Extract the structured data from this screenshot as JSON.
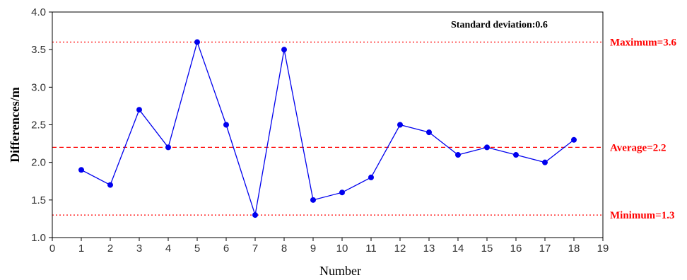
{
  "chart_data": {
    "type": "line",
    "title": "",
    "xlabel": "Number",
    "ylabel": "Differences/m",
    "xlim": [
      0,
      19
    ],
    "ylim": [
      1.0,
      4.0
    ],
    "x_ticks": [
      "0",
      "1",
      "2",
      "3",
      "4",
      "5",
      "6",
      "7",
      "8",
      "9",
      "10",
      "11",
      "12",
      "13",
      "14",
      "15",
      "16",
      "17",
      "18",
      "19"
    ],
    "y_ticks": [
      "1.0",
      "1.5",
      "2.0",
      "2.5",
      "3.0",
      "3.5",
      "4.0"
    ],
    "series": [
      {
        "color": "#0000ee",
        "x": [
          1,
          2,
          3,
          4,
          5,
          6,
          7,
          8,
          9,
          10,
          11,
          12,
          13,
          14,
          15,
          16,
          17,
          18
        ],
        "y": [
          1.9,
          1.7,
          2.7,
          2.2,
          3.6,
          2.5,
          1.3,
          3.5,
          1.5,
          1.6,
          1.8,
          2.5,
          2.4,
          2.1,
          2.2,
          2.1,
          2.0,
          2.3
        ]
      }
    ],
    "reference_lines": [
      {
        "label": "Maximum=3.6",
        "value": 3.6,
        "style": "dotted",
        "color": "#ff0000"
      },
      {
        "label": "Average=2.2",
        "value": 2.2,
        "style": "dashed",
        "color": "#ff0000"
      },
      {
        "label": "Minimum=1.3",
        "value": 1.3,
        "style": "dotted",
        "color": "#ff0000"
      }
    ],
    "annotation": "Standard deviation:0.6",
    "grid": false,
    "legend": "none"
  }
}
